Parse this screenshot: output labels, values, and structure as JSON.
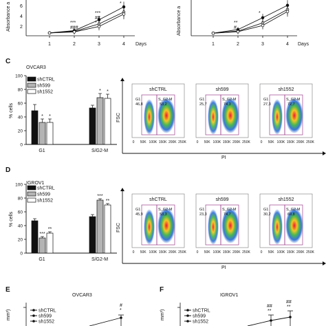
{
  "figure": {
    "top": {
      "left_ylabel": "Absorbance a",
      "right_ylabel": "Absorbance a",
      "x_ticks": [
        "1",
        "2",
        "3",
        "4"
      ],
      "xlabel": "Days",
      "left_sig": [
        {
          "x": 2,
          "text": "***"
        },
        {
          "x": 2,
          "text": "###"
        },
        {
          "x": 3,
          "text": "***"
        },
        {
          "x": 3,
          "text": "##"
        },
        {
          "x": 3,
          "text": "*"
        },
        {
          "x": 4,
          "text": "*"
        }
      ],
      "right_sig": [
        {
          "x": 2,
          "text": "**"
        },
        {
          "x": 2,
          "text": "#"
        },
        {
          "x": 3,
          "text": "*"
        }
      ]
    },
    "panelC": {
      "letter": "C",
      "title": "OVCAR3",
      "flow": {
        "ylabel": "FSC",
        "xlabel": "PI",
        "x_ticks": [
          "0",
          "50K",
          "100K",
          "150K",
          "200K",
          "250K"
        ],
        "panels": [
          {
            "name": "shCTRL",
            "g1_label": "G1",
            "sg2m_label": "S_G2-M",
            "g1": "46,8",
            "sg2m": "53,2"
          },
          {
            "name": "sh599",
            "g1_label": "G1",
            "sg2m_label": "S_G2-M",
            "g1": "25,7",
            "sg2m": "74,3"
          },
          {
            "name": "sh1552",
            "g1_label": "G1",
            "sg2m_label": "S_G2-M",
            "g1": "27,3",
            "sg2m": "72,7"
          }
        ]
      }
    },
    "panelD": {
      "letter": "D",
      "title": "IGROV1",
      "flow": {
        "ylabel": "FSC",
        "xlabel": "PI",
        "x_ticks": [
          "0",
          "50K",
          "100K",
          "150K",
          "200K",
          "250K"
        ],
        "panels": [
          {
            "name": "shCTRL",
            "g1_label": "G1",
            "sg2m_label": "S_G2-M",
            "g1": "45,9",
            "sg2m": "53,3"
          },
          {
            "name": "sh599",
            "g1_label": "G1",
            "sg2m_label": "S_G2-M",
            "g1": "23,3",
            "sg2m": "74,7"
          },
          {
            "name": "sh1552",
            "g1_label": "G1",
            "sg2m_label": "S_G2-M",
            "g1": "30,2",
            "sg2m": "69,8"
          }
        ]
      }
    },
    "panelE": {
      "letter": "E",
      "title": "OVCAR3",
      "ylabel": "mm³)",
      "legend": [
        "shCTRL",
        "sh599",
        "sh1552"
      ],
      "sig": [
        "#",
        "*"
      ]
    },
    "panelF": {
      "letter": "F",
      "title": "IGROV1",
      "ylabel": "mm³)",
      "legend": [
        "shCTRL",
        "sh599",
        "sh1552"
      ],
      "sig": [
        "##",
        "**",
        "##",
        "**"
      ]
    },
    "colors": {
      "black": "#111111",
      "gray": "#b4b4b4",
      "white": "#ffffff",
      "gate": "#9a3f8a"
    }
  },
  "chart_data": [
    {
      "type": "line",
      "x": [
        1,
        2,
        3,
        4
      ],
      "xlabel": "Days",
      "ylabel": "Absorbance a",
      "series": [
        {
          "values": [
            0.55,
            1.0,
            3.1,
            5.6
          ]
        },
        {
          "values": [
            0.55,
            0.85,
            2.3,
            4.6
          ]
        },
        {
          "values": [
            0.55,
            0.75,
            1.8,
            4.2
          ]
        }
      ]
    },
    {
      "type": "line",
      "x": [
        1,
        2,
        3,
        4
      ],
      "xlabel": "Days",
      "ylabel": "Absorbance a",
      "series": [
        {
          "values": [
            0.5,
            1.2,
            3.5,
            5.9
          ]
        },
        {
          "values": [
            0.5,
            0.9,
            2.5,
            5.1
          ]
        },
        {
          "values": [
            0.5,
            0.8,
            2.0,
            4.7
          ]
        }
      ]
    },
    {
      "type": "bar",
      "title": "OVCAR3",
      "categories": [
        "G1",
        "S/G2-M"
      ],
      "ylabel": "% cells",
      "ylim": [
        0,
        100
      ],
      "yticks": [
        0,
        20,
        40,
        60,
        80,
        100
      ],
      "series": [
        {
          "name": "shCTRL",
          "values": [
            49,
            53
          ],
          "errors": [
            9,
            4
          ]
        },
        {
          "name": "sh599",
          "values": [
            32,
            68
          ],
          "errors": [
            5,
            6
          ]
        },
        {
          "name": "sh1552",
          "values": [
            32,
            67
          ],
          "errors": [
            5,
            6
          ]
        }
      ],
      "significance": [
        [
          "",
          "*",
          "*"
        ],
        [
          "",
          "*",
          "*"
        ]
      ]
    },
    {
      "type": "bar",
      "title": "IGROV1",
      "categories": [
        "G1",
        "S/G2-M"
      ],
      "ylabel": "% cells",
      "ylim": [
        0,
        100
      ],
      "yticks": [
        0,
        20,
        40,
        60,
        80,
        100
      ],
      "series": [
        {
          "name": "shCTRL",
          "values": [
            47,
            53
          ],
          "errors": [
            3,
            3
          ]
        },
        {
          "name": "sh599",
          "values": [
            22,
            77
          ],
          "errors": [
            2,
            2
          ]
        },
        {
          "name": "sh1552",
          "values": [
            29,
            70
          ],
          "errors": [
            2,
            2
          ]
        }
      ],
      "significance": [
        [
          "",
          "***",
          "**"
        ],
        [
          "",
          "***",
          "**"
        ]
      ]
    }
  ]
}
